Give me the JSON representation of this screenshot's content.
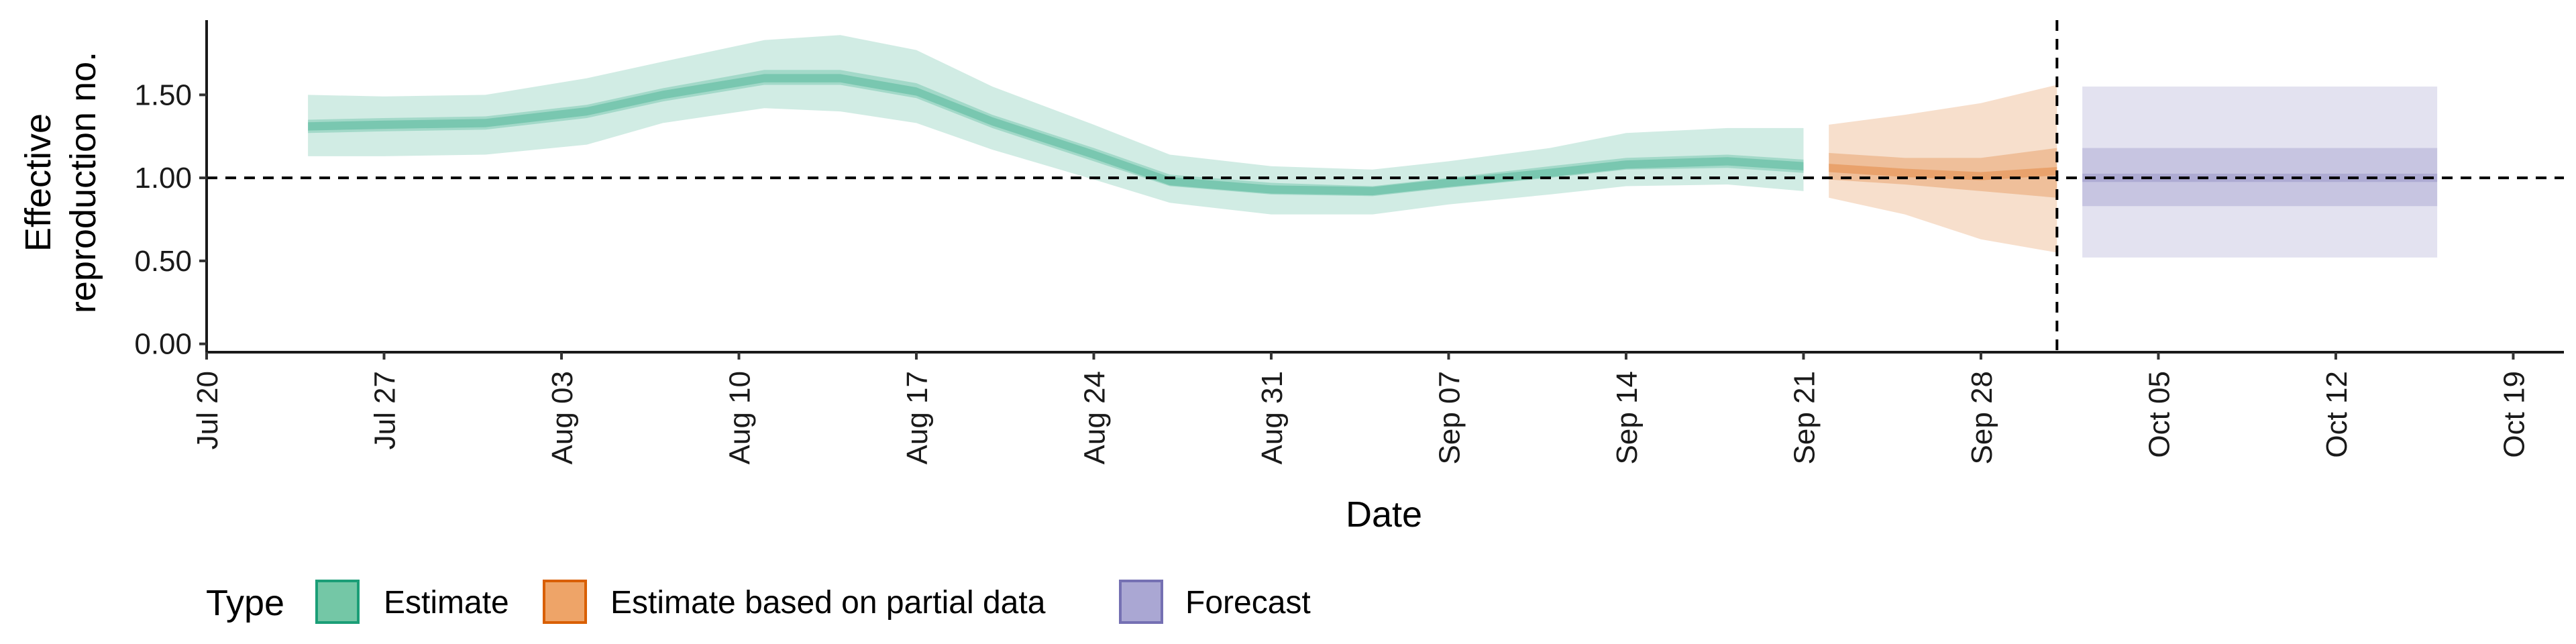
{
  "chart_data": {
    "type": "area",
    "xlabel": "Date",
    "ylabel_lines": [
      "Effective",
      "reproduction no."
    ],
    "ylim": [
      -0.05,
      1.95
    ],
    "yticks": [
      0,
      0.5,
      1,
      1.5
    ],
    "ytick_labels": [
      "0.00",
      "0.50",
      "1.00",
      "1.50"
    ],
    "xlim": [
      "2020-07-20",
      "2020-10-21"
    ],
    "xticks": [
      "2020-07-20",
      "2020-07-27",
      "2020-08-03",
      "2020-08-10",
      "2020-08-17",
      "2020-08-24",
      "2020-08-31",
      "2020-09-07",
      "2020-09-14",
      "2020-09-21",
      "2020-09-28",
      "2020-10-05",
      "2020-10-12",
      "2020-10-19"
    ],
    "xtick_labels": [
      "Jul 20",
      "Jul 27",
      "Aug 03",
      "Aug 10",
      "Aug 17",
      "Aug 24",
      "Aug 31",
      "Sep 07",
      "Sep 14",
      "Sep 21",
      "Sep 28",
      "Oct 05",
      "Oct 12",
      "Oct 19"
    ],
    "reference_hline": 1.0,
    "reference_vline": "2020-10-01",
    "legend": {
      "title": "Type",
      "position": "bottom",
      "items": [
        {
          "label": "Estimate",
          "fill": "#74c7a6",
          "stroke": "#1b9e77"
        },
        {
          "label": "Estimate based on partial data",
          "fill": "#eea468",
          "stroke": "#d95f02"
        },
        {
          "label": "Forecast",
          "fill": "#aaa7d3",
          "stroke": "#7570b3"
        }
      ]
    },
    "series": [
      {
        "type": "Estimate",
        "color": "#1b9e77",
        "x": [
          "2020-07-24",
          "2020-07-27",
          "2020-07-31",
          "2020-08-04",
          "2020-08-07",
          "2020-08-11",
          "2020-08-14",
          "2020-08-17",
          "2020-08-20",
          "2020-08-24",
          "2020-08-27",
          "2020-08-31",
          "2020-09-04",
          "2020-09-07",
          "2020-09-11",
          "2020-09-14",
          "2020-09-18",
          "2020-09-21"
        ],
        "median": [
          1.31,
          1.32,
          1.33,
          1.4,
          1.5,
          1.6,
          1.6,
          1.52,
          1.34,
          1.14,
          0.98,
          0.93,
          0.92,
          0.97,
          1.03,
          1.08,
          1.1,
          1.07
        ],
        "lower_50": [
          1.27,
          1.28,
          1.29,
          1.36,
          1.46,
          1.56,
          1.56,
          1.48,
          1.3,
          1.1,
          0.95,
          0.9,
          0.89,
          0.94,
          1.0,
          1.05,
          1.06,
          1.03
        ],
        "upper_50": [
          1.35,
          1.36,
          1.37,
          1.44,
          1.54,
          1.65,
          1.65,
          1.57,
          1.38,
          1.18,
          1.02,
          0.97,
          0.95,
          1.0,
          1.07,
          1.12,
          1.14,
          1.11
        ],
        "lower_90": [
          1.13,
          1.13,
          1.14,
          1.2,
          1.33,
          1.42,
          1.4,
          1.33,
          1.17,
          0.99,
          0.85,
          0.78,
          0.78,
          0.84,
          0.9,
          0.95,
          0.96,
          0.92
        ],
        "upper_90": [
          1.5,
          1.49,
          1.5,
          1.6,
          1.7,
          1.83,
          1.86,
          1.77,
          1.55,
          1.32,
          1.14,
          1.07,
          1.05,
          1.1,
          1.18,
          1.27,
          1.3,
          1.3
        ]
      },
      {
        "type": "Estimate based on partial data",
        "color": "#d95f02",
        "x": [
          "2020-09-22",
          "2020-09-25",
          "2020-09-28",
          "2020-10-01"
        ],
        "median": [
          1.06,
          1.03,
          1.01,
          1.04
        ],
        "lower_50": [
          0.99,
          0.96,
          0.92,
          0.88
        ],
        "upper_50": [
          1.15,
          1.12,
          1.12,
          1.18
        ],
        "lower_90": [
          0.88,
          0.78,
          0.63,
          0.55
        ],
        "upper_90": [
          1.32,
          1.38,
          1.45,
          1.56
        ]
      },
      {
        "type": "Forecast",
        "color": "#7570b3",
        "x": [
          "2020-10-02",
          "2020-10-16"
        ],
        "median": [
          1.0,
          1.0
        ],
        "lower_50": [
          0.83,
          0.83
        ],
        "upper_50": [
          1.18,
          1.18
        ],
        "lower_90": [
          0.52,
          0.52
        ],
        "upper_90": [
          1.55,
          1.55
        ]
      }
    ]
  }
}
